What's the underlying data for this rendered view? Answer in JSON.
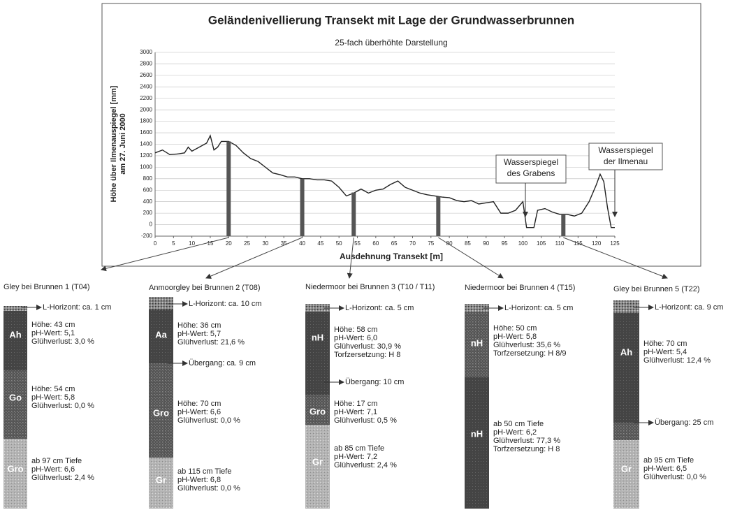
{
  "chart_data": {
    "type": "line",
    "title": "Geländenivellierung Transekt mit Lage der Grundwasserbrunnen",
    "subtitle": "25-fach überhöhte Darstellung",
    "y_label": [
      "Höhe über Ilmenauspiegel [mm]",
      "am 27. Juni 2000"
    ],
    "x_label": "Ausdehnung Transekt [m]",
    "x": [
      0,
      2,
      4,
      6,
      8,
      9,
      10,
      12,
      14,
      15,
      16,
      17,
      18,
      20,
      22,
      24,
      26,
      28,
      30,
      32,
      34,
      36,
      38,
      40,
      42,
      44,
      46,
      48,
      50,
      52,
      54,
      56,
      58,
      60,
      62,
      64,
      66,
      68,
      70,
      72,
      74,
      76,
      78,
      80,
      82,
      84,
      86,
      88,
      90,
      92,
      94,
      96,
      98,
      100,
      101,
      103,
      104,
      106,
      108,
      110,
      112,
      114,
      116,
      118,
      120,
      121,
      122,
      123,
      124,
      125
    ],
    "series": [
      {
        "color": "#222222",
        "values": [
          1250,
          1300,
          1220,
          1230,
          1250,
          1350,
          1280,
          1350,
          1420,
          1550,
          1300,
          1350,
          1450,
          1450,
          1380,
          1250,
          1150,
          1100,
          1000,
          900,
          870,
          830,
          830,
          800,
          800,
          780,
          780,
          760,
          650,
          500,
          550,
          620,
          550,
          600,
          620,
          700,
          760,
          650,
          600,
          550,
          520,
          500,
          480,
          470,
          420,
          400,
          420,
          360,
          380,
          400,
          200,
          200,
          250,
          400,
          -50,
          -50,
          250,
          280,
          220,
          180,
          180,
          150,
          200,
          400,
          700,
          880,
          750,
          300,
          -50,
          -50
        ]
      }
    ],
    "wells": {
      "color": "#555555",
      "x": [
        20,
        40,
        54,
        77,
        111
      ],
      "values": [
        1450,
        800,
        560,
        490,
        180
      ]
    },
    "xlim": [
      0,
      125
    ],
    "ylim": [
      -200,
      3000
    ],
    "xticks": [
      0,
      5,
      10,
      15,
      20,
      25,
      30,
      35,
      40,
      45,
      50,
      55,
      60,
      65,
      70,
      75,
      80,
      85,
      90,
      95,
      100,
      105,
      110,
      115,
      120,
      125
    ],
    "yticks": [
      -200,
      0,
      200,
      400,
      600,
      800,
      1000,
      1200,
      1400,
      1600,
      1800,
      2000,
      2200,
      2400,
      2600,
      2800,
      3000
    ],
    "grid": true,
    "annotations": [
      {
        "lines": [
          "Wasserspiegel",
          "des Grabens"
        ]
      },
      {
        "lines": [
          "Wasserspiegel",
          "der Ilmenau"
        ]
      }
    ]
  },
  "profiles": [
    {
      "title": "Gley bei Brunnen 1 (T04)",
      "layers": [
        "Ah",
        "Go",
        "Gro"
      ],
      "notes": [
        {
          "lines": [
            "L-Horizont: ca. 1 cm"
          ]
        },
        {
          "lines": [
            "Höhe: 43 cm",
            "pH-Wert: 5,1",
            "Glühverlust: 3,0 %"
          ]
        },
        {
          "lines": [
            "Höhe: 54 cm",
            "pH-Wert: 5,8",
            "Glühverlust: 0,0 %"
          ]
        },
        {
          "lines": [
            "ab 97 cm Tiefe",
            "pH-Wert: 6,6",
            "Glühverlust: 2,4 %"
          ]
        }
      ]
    },
    {
      "title": "Anmoorgley bei Brunnen 2 (T08)",
      "layers": [
        "Aa",
        "Gro",
        "Gr"
      ],
      "notes": [
        {
          "lines": [
            "L-Horizont: ca. 10 cm"
          ]
        },
        {
          "lines": [
            "Höhe: 36 cm",
            "pH-Wert: 5,7",
            "Glühverlust: 21,6 %"
          ]
        },
        {
          "lines": [
            "Übergang: ca. 9 cm"
          ]
        },
        {
          "lines": [
            "Höhe: 70 cm",
            "pH-Wert: 6,6",
            "Glühverlust: 0,0 %"
          ]
        },
        {
          "lines": [
            "ab 115 cm Tiefe",
            "pH-Wert: 6,8",
            "Glühverlust: 0,0 %"
          ]
        }
      ]
    },
    {
      "title": "Niedermoor bei Brunnen 3 (T10 / T11)",
      "layers": [
        "nH",
        "Gro",
        "Gr"
      ],
      "notes": [
        {
          "lines": [
            "L-Horizont: ca. 5 cm"
          ]
        },
        {
          "lines": [
            "Höhe: 58 cm",
            "pH-Wert: 6,0",
            "Glühverlust: 30,9 %",
            "Torfzersetzung: H 8"
          ]
        },
        {
          "lines": [
            "Übergang: 10 cm"
          ]
        },
        {
          "lines": [
            "Höhe: 17 cm",
            "pH-Wert: 7,1",
            "Glühverlust: 0,5 %"
          ]
        },
        {
          "lines": [
            "ab 85 cm Tiefe",
            "pH-Wert: 7,2",
            "Glühverlust: 2,4 %"
          ]
        }
      ]
    },
    {
      "title": "Niedermoor bei Brunnen 4 (T15)",
      "layers": [
        "nH",
        "nH"
      ],
      "notes": [
        {
          "lines": [
            "L-Horizont: ca. 5 cm"
          ]
        },
        {
          "lines": [
            "Höhe: 50 cm",
            "pH-Wert: 5,8",
            "Glühverlust: 35,6 %",
            "Torfzersetzung: H 8/9"
          ]
        },
        {
          "lines": [
            "ab 50 cm Tiefe",
            "pH-Wert: 6,2",
            "Glühverlust: 77,3 %",
            "Torfzersetzung: H 8"
          ]
        }
      ]
    },
    {
      "title": "Gley bei Brunnen 5 (T22)",
      "layers": [
        "Ah",
        "Gr"
      ],
      "notes": [
        {
          "lines": [
            "L-Horizont: ca. 9 cm"
          ]
        },
        {
          "lines": [
            "Höhe: 70 cm",
            "pH-Wert: 5,4",
            "Glühverlust: 12,4 %"
          ]
        },
        {
          "lines": [
            "Übergang: 25 cm"
          ]
        },
        {
          "lines": [
            "ab 95 cm Tiefe",
            "pH-Wert: 6,5",
            "Glühverlust: 0,0 %"
          ]
        }
      ]
    }
  ]
}
